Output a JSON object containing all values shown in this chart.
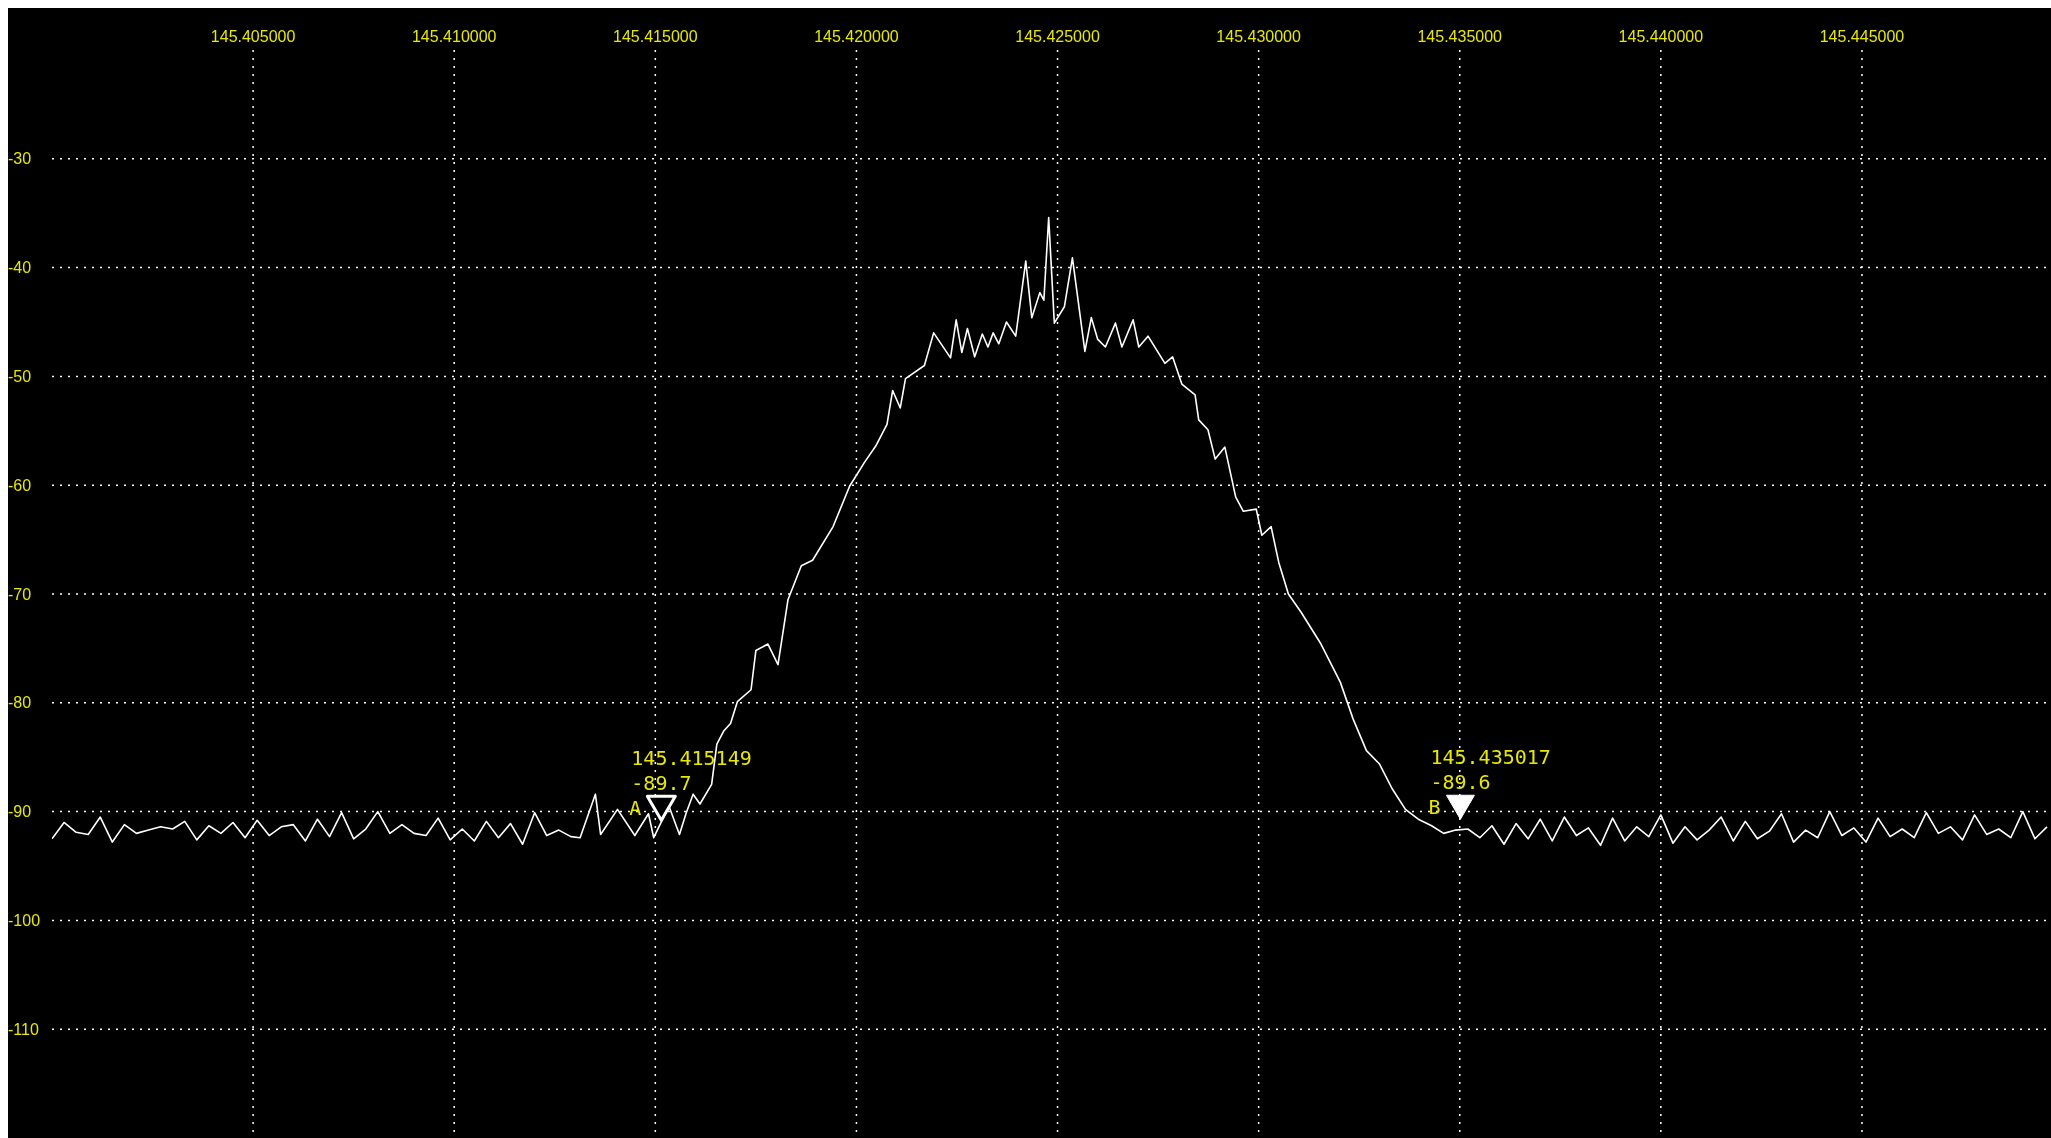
{
  "chart_data": {
    "type": "line",
    "x": [
      145.4,
      145.4003,
      145.4006,
      145.4009,
      145.4012,
      145.4015,
      145.4018,
      145.4021,
      145.4024,
      145.4027,
      145.403,
      145.4033,
      145.4036,
      145.4039,
      145.4042,
      145.4045,
      145.4048,
      145.4051,
      145.4054,
      145.4057,
      145.406,
      145.4063,
      145.4066,
      145.4069,
      145.4072,
      145.4075,
      145.4078,
      145.4081,
      145.4084,
      145.4087,
      145.409,
      145.4093,
      145.4096,
      145.4099,
      145.4102,
      145.4105,
      145.4108,
      145.4111,
      145.4114,
      145.4117,
      145.412,
      145.4123,
      145.4126,
      145.4129,
      145.41313,
      145.41351,
      145.41364,
      145.41406,
      145.41449,
      145.41483,
      145.41496,
      145.41534,
      145.4156,
      145.41577,
      145.41594,
      145.41611,
      145.4164,
      145.41653,
      145.4167,
      145.41687,
      145.41704,
      145.41738,
      145.4175,
      145.4178,
      145.41805,
      145.4183,
      145.41863,
      145.41891,
      145.41942,
      145.41983,
      145.4202,
      145.42048,
      145.42076,
      145.4209,
      145.42109,
      145.42122,
      145.42169,
      145.42192,
      145.42234,
      145.42248,
      145.42262,
      145.42276,
      145.42294,
      145.42313,
      145.42327,
      145.4234,
      145.42354,
      145.42373,
      145.42396,
      145.42421,
      145.42436,
      145.42456,
      145.42466,
      145.42478,
      145.42492,
      145.42517,
      145.42537,
      145.42568,
      145.42584,
      145.426,
      145.42619,
      145.42644,
      145.4266,
      145.42688,
      145.42702,
      145.42725,
      145.42767,
      145.42786,
      145.42809,
      145.42842,
      145.42851,
      145.42874,
      145.42892,
      145.42916,
      145.42943,
      145.42962,
      145.42994,
      145.43008,
      145.43031,
      145.4305,
      145.43074,
      145.43106,
      145.43155,
      145.43203,
      145.43235,
      145.43268,
      145.433,
      145.43332,
      145.43365,
      145.43397,
      145.4343,
      145.4346,
      145.4349,
      145.4352,
      145.4355,
      145.4358,
      145.4361,
      145.4364,
      145.4367,
      145.437,
      145.4373,
      145.4376,
      145.4379,
      145.4382,
      145.4385,
      145.4388,
      145.4391,
      145.4394,
      145.4397,
      145.44,
      145.4403,
      145.4406,
      145.4409,
      145.4412,
      145.4415,
      145.4418,
      145.4421,
      145.4424,
      145.4427,
      145.443,
      145.4433,
      145.4436,
      145.4439,
      145.4442,
      145.4445,
      145.4448,
      145.4451,
      145.4454,
      145.4457,
      145.446,
      145.4463,
      145.4466,
      145.4469,
      145.4472,
      145.4475,
      145.4478,
      145.4481,
      145.4484,
      145.4487,
      145.449,
      145.4493,
      145.4496
    ],
    "series": [
      {
        "type": "scatter",
        "name": "A",
        "color": "#ffffff",
        "marker": "triangle",
        "x": [
          145.415149
        ],
        "values": [
          -89.7
        ],
        "value_labels": [
          "145.415149\n-89.7"
        ]
      },
      {
        "type": "scatter",
        "name": "B",
        "color": "#ffffff",
        "marker": "triangle",
        "x": [
          145.435017
        ],
        "values": [
          -89.6
        ],
        "value_labels": [
          "145.435017\n-89.6"
        ]
      },
      {
        "color": "#ffffff",
        "values": [
          -92.5,
          -91.0,
          -91.9,
          -92.1,
          -90.5,
          -92.8,
          -91.2,
          -92.0,
          -91.7,
          -91.4,
          -91.6,
          -90.9,
          -92.6,
          -91.3,
          -92.0,
          -91.0,
          -92.4,
          -90.8,
          -92.2,
          -91.4,
          -91.2,
          -92.7,
          -90.7,
          -92.3,
          -90.1,
          -92.5,
          -91.6,
          -90.0,
          -92.0,
          -91.2,
          -92.0,
          -92.2,
          -90.6,
          -92.6,
          -91.6,
          -92.7,
          -90.9,
          -92.4,
          -91.1,
          -93.0,
          -90.1,
          -92.2,
          -91.7,
          -92.3,
          -92.4,
          -88.4,
          -92.1,
          -89.8,
          -92.2,
          -90.2,
          -92.4,
          -89.5,
          -92.1,
          -90.1,
          -88.4,
          -89.3,
          -87.5,
          -83.8,
          -82.6,
          -81.9,
          -79.9,
          -78.8,
          -75.2,
          -74.6,
          -76.5,
          -70.5,
          -67.4,
          -66.9,
          -63.8,
          -60.1,
          -57.9,
          -56.4,
          -54.4,
          -51.3,
          -52.9,
          -50.2,
          -49.0,
          -46.0,
          -48.3,
          -44.8,
          -47.8,
          -45.6,
          -48.2,
          -46.1,
          -47.3,
          -46.0,
          -47.0,
          -45.0,
          -46.3,
          -39.4,
          -44.6,
          -42.3,
          -43.0,
          -35.4,
          -45.1,
          -43.6,
          -39.1,
          -47.7,
          -44.6,
          -46.6,
          -47.3,
          -45.1,
          -47.3,
          -44.8,
          -47.3,
          -46.3,
          -48.8,
          -48.2,
          -50.7,
          -51.7,
          -54.0,
          -54.9,
          -57.6,
          -56.5,
          -61.1,
          -62.4,
          -62.2,
          -64.6,
          -63.8,
          -67.1,
          -70.0,
          -71.7,
          -74.6,
          -78.1,
          -81.5,
          -84.4,
          -85.6,
          -87.9,
          -89.8,
          -90.7,
          -91.3,
          -92.0,
          -91.7,
          -91.6,
          -92.4,
          -91.3,
          -93.0,
          -91.1,
          -92.5,
          -90.7,
          -92.7,
          -90.5,
          -92.2,
          -91.5,
          -93.1,
          -90.6,
          -92.7,
          -91.4,
          -92.3,
          -90.3,
          -92.9,
          -91.4,
          -92.6,
          -91.7,
          -90.5,
          -92.7,
          -90.9,
          -92.5,
          -91.8,
          -90.2,
          -92.8,
          -91.7,
          -92.4,
          -90.0,
          -92.2,
          -91.5,
          -92.8,
          -90.6,
          -92.3,
          -91.6,
          -92.4,
          -90.1,
          -92.0,
          -91.4,
          -92.6,
          -90.3,
          -92.1,
          -91.6,
          -92.4,
          -90.0,
          -92.5,
          -91.4
        ]
      }
    ],
    "xlim": [
      145.4,
      145.4497
    ],
    "xticks": [
      {
        "value": 145.405,
        "label": "145.405000"
      },
      {
        "value": 145.41,
        "label": "145.410000"
      },
      {
        "value": 145.415,
        "label": "145.415000"
      },
      {
        "value": 145.42,
        "label": "145.420000"
      },
      {
        "value": 145.425,
        "label": "145.425000"
      },
      {
        "value": 145.43,
        "label": "145.430000"
      },
      {
        "value": 145.435,
        "label": "145.435000"
      },
      {
        "value": 145.44,
        "label": "145.440000"
      },
      {
        "value": 145.445,
        "label": "145.445000"
      }
    ],
    "ylim": [
      -120,
      -20
    ],
    "yticks": [
      -110,
      -100,
      -90,
      -80,
      -70,
      -60,
      -50,
      -40,
      -30
    ],
    "grid": true,
    "line_style": "solid",
    "marker": "none"
  }
}
